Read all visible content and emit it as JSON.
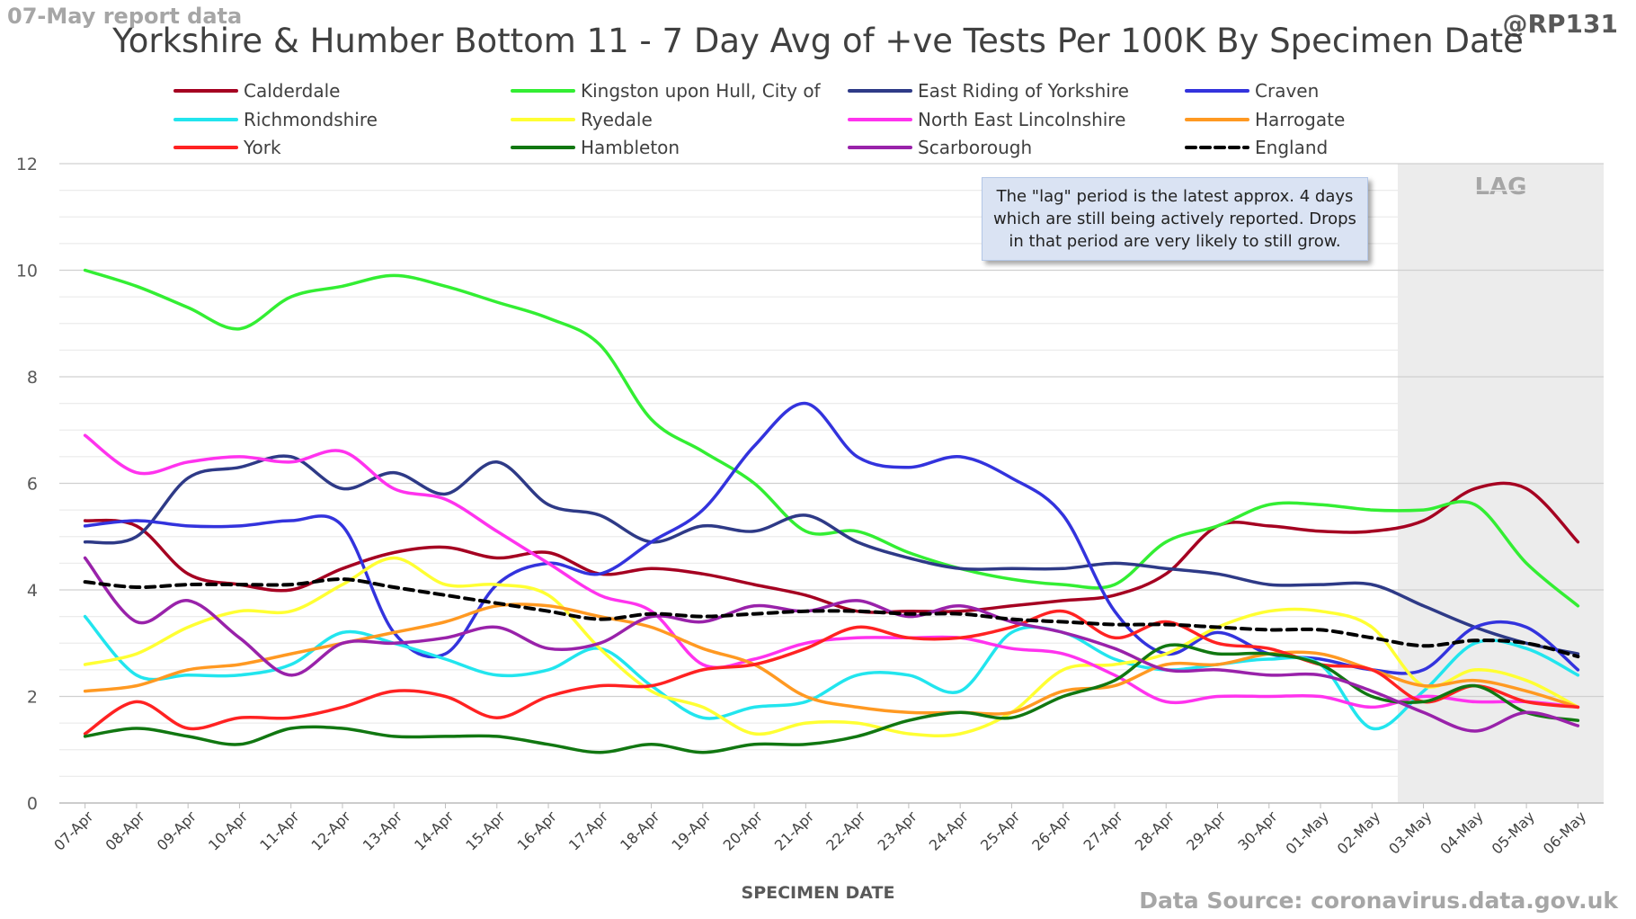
{
  "header": {
    "report_label": "07-May report data",
    "handle": "@RP131",
    "source": "Data Source: coronavirus.data.gov.uk"
  },
  "colors": {
    "lag_shade": "#ececec",
    "grid": "#d9d9d9"
  },
  "chart_data": {
    "type": "line",
    "title": "Yorkshire & Humber Bottom 11 - 7 Day Avg of +ve Tests Per 100K By Specimen Date",
    "xlabel": "SPECIMEN DATE",
    "ylabel": "",
    "ylim": [
      0,
      12
    ],
    "yticks": [
      "0",
      "2",
      "4",
      "6",
      "8",
      "10",
      "12"
    ],
    "grid": true,
    "legend_position": "top",
    "x": [
      "07-Apr",
      "08-Apr",
      "09-Apr",
      "10-Apr",
      "11-Apr",
      "12-Apr",
      "13-Apr",
      "14-Apr",
      "15-Apr",
      "16-Apr",
      "17-Apr",
      "18-Apr",
      "19-Apr",
      "20-Apr",
      "21-Apr",
      "22-Apr",
      "23-Apr",
      "24-Apr",
      "25-Apr",
      "26-Apr",
      "27-Apr",
      "28-Apr",
      "29-Apr",
      "30-Apr",
      "01-May",
      "02-May",
      "03-May",
      "04-May",
      "05-May",
      "06-May"
    ],
    "lag": {
      "label": "LAG",
      "start": "03-May",
      "end": "06-May"
    },
    "annotation": "The \"lag\" period is the latest approx. 4 days which are still being actively reported. Drops in that period are very likely to still grow.",
    "series": [
      {
        "name": "Calderdale",
        "color": "#a50021",
        "dashed": false,
        "values": [
          5.3,
          5.2,
          4.3,
          4.1,
          4.0,
          4.4,
          4.7,
          4.8,
          4.6,
          4.7,
          4.3,
          4.4,
          4.3,
          4.1,
          3.9,
          3.6,
          3.6,
          3.6,
          3.7,
          3.8,
          3.9,
          4.3,
          5.2,
          5.2,
          5.1,
          5.1,
          5.3,
          5.9,
          5.9,
          4.9
        ]
      },
      {
        "name": "Kingston upon Hull, City of",
        "color": "#33ee33",
        "dashed": false,
        "values": [
          10.0,
          9.7,
          9.3,
          8.9,
          9.5,
          9.7,
          9.9,
          9.7,
          9.4,
          9.1,
          8.6,
          7.2,
          6.6,
          6.0,
          5.1,
          5.1,
          4.7,
          4.4,
          4.2,
          4.1,
          4.1,
          4.9,
          5.2,
          5.6,
          5.6,
          5.5,
          5.5,
          5.6,
          4.5,
          3.7
        ]
      },
      {
        "name": "East Riding of Yorkshire",
        "color": "#2e3a87",
        "dashed": false,
        "values": [
          4.9,
          5.0,
          6.1,
          6.3,
          6.5,
          5.9,
          6.2,
          5.8,
          6.4,
          5.6,
          5.4,
          4.9,
          5.2,
          5.1,
          5.4,
          4.9,
          4.6,
          4.4,
          4.4,
          4.4,
          4.5,
          4.4,
          4.3,
          4.1,
          4.1,
          4.1,
          3.7,
          3.3,
          3.0,
          2.8
        ]
      },
      {
        "name": "Craven",
        "color": "#3333dd",
        "dashed": false,
        "values": [
          5.2,
          5.3,
          5.2,
          5.2,
          5.3,
          5.2,
          3.2,
          2.8,
          4.1,
          4.5,
          4.3,
          4.9,
          5.5,
          6.7,
          7.5,
          6.5,
          6.3,
          6.5,
          6.1,
          5.4,
          3.6,
          2.8,
          3.2,
          2.8,
          2.7,
          2.5,
          2.5,
          3.3,
          3.3,
          2.5
        ]
      },
      {
        "name": "Richmondshire",
        "color": "#22e5ee",
        "dashed": false,
        "values": [
          3.5,
          2.4,
          2.4,
          2.4,
          2.6,
          3.2,
          3.0,
          2.7,
          2.4,
          2.5,
          2.9,
          2.2,
          1.6,
          1.8,
          1.9,
          2.4,
          2.4,
          2.1,
          3.2,
          3.2,
          2.7,
          2.5,
          2.6,
          2.7,
          2.6,
          1.4,
          2.1,
          3.0,
          2.9,
          2.4
        ]
      },
      {
        "name": "Ryedale",
        "color": "#ffff33",
        "dashed": false,
        "values": [
          2.6,
          2.8,
          3.3,
          3.6,
          3.6,
          4.1,
          4.6,
          4.1,
          4.1,
          3.9,
          2.9,
          2.1,
          1.8,
          1.3,
          1.5,
          1.5,
          1.3,
          1.3,
          1.7,
          2.5,
          2.6,
          2.8,
          3.3,
          3.6,
          3.6,
          3.3,
          2.2,
          2.5,
          2.3,
          1.8
        ]
      },
      {
        "name": "North East Lincolnshire",
        "color": "#ff33ee",
        "dashed": false,
        "values": [
          6.9,
          6.2,
          6.4,
          6.5,
          6.4,
          6.6,
          5.9,
          5.7,
          5.1,
          4.5,
          3.9,
          3.6,
          2.6,
          2.7,
          3.0,
          3.1,
          3.1,
          3.1,
          2.9,
          2.8,
          2.4,
          1.9,
          2.0,
          2.0,
          2.0,
          1.8,
          2.0,
          1.9,
          1.9,
          1.8
        ]
      },
      {
        "name": "Harrogate",
        "color": "#ff9922",
        "dashed": false,
        "values": [
          2.1,
          2.2,
          2.5,
          2.6,
          2.8,
          3.0,
          3.2,
          3.4,
          3.7,
          3.7,
          3.5,
          3.3,
          2.9,
          2.6,
          2.0,
          1.8,
          1.7,
          1.7,
          1.7,
          2.1,
          2.2,
          2.6,
          2.6,
          2.8,
          2.8,
          2.5,
          2.2,
          2.3,
          2.1,
          1.8
        ]
      },
      {
        "name": "York",
        "color": "#ff2222",
        "dashed": false,
        "values": [
          1.3,
          1.9,
          1.4,
          1.6,
          1.6,
          1.8,
          2.1,
          2.0,
          1.6,
          2.0,
          2.2,
          2.2,
          2.5,
          2.6,
          2.9,
          3.3,
          3.1,
          3.1,
          3.3,
          3.6,
          3.1,
          3.4,
          3.0,
          2.9,
          2.6,
          2.5,
          1.9,
          2.2,
          1.9,
          1.8
        ]
      },
      {
        "name": "Hambleton",
        "color": "#117711",
        "dashed": false,
        "values": [
          1.25,
          1.4,
          1.25,
          1.1,
          1.4,
          1.4,
          1.25,
          1.25,
          1.25,
          1.1,
          0.95,
          1.1,
          0.95,
          1.1,
          1.1,
          1.25,
          1.55,
          1.7,
          1.6,
          2.0,
          2.3,
          2.95,
          2.8,
          2.8,
          2.6,
          2.0,
          1.9,
          2.2,
          1.7,
          1.55
        ]
      },
      {
        "name": "Scarborough",
        "color": "#9922aa",
        "dashed": false,
        "values": [
          4.6,
          3.4,
          3.8,
          3.1,
          2.4,
          3.0,
          3.0,
          3.1,
          3.3,
          2.9,
          3.0,
          3.5,
          3.4,
          3.7,
          3.6,
          3.8,
          3.5,
          3.7,
          3.4,
          3.2,
          2.9,
          2.5,
          2.5,
          2.4,
          2.4,
          2.1,
          1.7,
          1.35,
          1.7,
          1.45
        ]
      },
      {
        "name": "England",
        "color": "#000000",
        "dashed": true,
        "values": [
          4.15,
          4.05,
          4.1,
          4.1,
          4.1,
          4.2,
          4.05,
          3.9,
          3.75,
          3.6,
          3.45,
          3.55,
          3.5,
          3.55,
          3.6,
          3.6,
          3.55,
          3.55,
          3.45,
          3.4,
          3.35,
          3.35,
          3.3,
          3.25,
          3.25,
          3.1,
          2.95,
          3.05,
          3.0,
          2.75
        ]
      }
    ]
  }
}
